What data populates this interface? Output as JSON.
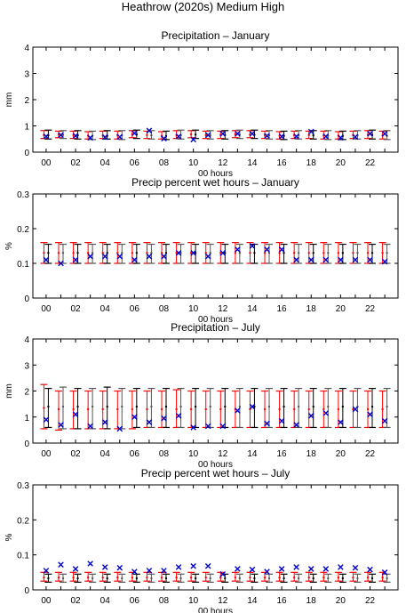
{
  "figure": {
    "title": "Heathrow (2020s) Medium High",
    "colors": {
      "red": "#ff0000",
      "black": "#000000",
      "gray": "#555555",
      "blue": "#0000cc"
    }
  },
  "chart_data": [
    {
      "type": "errorbar",
      "title": "Precipitation – January",
      "xlabel": "00 hours",
      "ylabel": "mm",
      "ylim": [
        0,
        4
      ],
      "yticks": [
        "0",
        "1",
        "2",
        "3",
        "4"
      ],
      "xlim": [
        -0.9,
        23.9
      ],
      "xticks": [
        "00",
        "02",
        "04",
        "06",
        "08",
        "10",
        "12",
        "14",
        "16",
        "18",
        "20",
        "22"
      ],
      "hours": [
        0,
        1,
        2,
        3,
        4,
        5,
        6,
        7,
        8,
        9,
        10,
        11,
        12,
        13,
        14,
        15,
        16,
        17,
        18,
        19,
        20,
        21,
        22,
        23
      ],
      "red_range": {
        "low": [
          0.52,
          0.55,
          0.52,
          0.5,
          0.52,
          0.5,
          0.55,
          0.52,
          0.5,
          0.52,
          0.55,
          0.52,
          0.52,
          0.55,
          0.55,
          0.52,
          0.5,
          0.52,
          0.52,
          0.5,
          0.5,
          0.52,
          0.52,
          0.5
        ],
        "mid": [
          0.65,
          0.67,
          0.65,
          0.63,
          0.63,
          0.65,
          0.68,
          0.65,
          0.62,
          0.65,
          0.68,
          0.65,
          0.66,
          0.68,
          0.67,
          0.65,
          0.63,
          0.65,
          0.65,
          0.63,
          0.63,
          0.65,
          0.66,
          0.63
        ],
        "high": [
          0.82,
          0.8,
          0.8,
          0.78,
          0.8,
          0.8,
          0.82,
          0.8,
          0.78,
          0.82,
          0.82,
          0.8,
          0.8,
          0.82,
          0.82,
          0.8,
          0.78,
          0.8,
          0.8,
          0.8,
          0.78,
          0.8,
          0.82,
          0.8
        ]
      },
      "black_range": {
        "low": [
          0.5,
          0.52,
          0.5,
          0.48,
          0.5,
          0.48,
          0.52,
          0.5,
          0.48,
          0.5,
          0.52,
          0.5,
          0.5,
          0.52,
          0.52,
          0.5,
          0.48,
          0.5,
          0.5,
          0.48,
          0.48,
          0.5,
          0.5,
          0.48
        ],
        "mid": [
          0.64,
          0.66,
          0.64,
          0.62,
          0.62,
          0.64,
          0.67,
          0.64,
          0.61,
          0.64,
          0.67,
          0.64,
          0.65,
          0.67,
          0.66,
          0.64,
          0.62,
          0.64,
          0.64,
          0.62,
          0.62,
          0.64,
          0.65,
          0.62
        ],
        "high": [
          0.84,
          0.82,
          0.82,
          0.8,
          0.82,
          0.82,
          0.84,
          0.82,
          0.8,
          0.84,
          0.84,
          0.82,
          0.82,
          0.84,
          0.84,
          0.82,
          0.8,
          0.82,
          0.82,
          0.82,
          0.8,
          0.82,
          0.84,
          0.82
        ]
      },
      "observed": [
        0.6,
        0.65,
        0.62,
        0.55,
        0.57,
        0.58,
        0.72,
        0.82,
        0.52,
        0.6,
        0.48,
        0.65,
        0.7,
        0.7,
        0.7,
        0.62,
        0.6,
        0.6,
        0.78,
        0.6,
        0.55,
        0.58,
        0.7,
        0.7
      ]
    },
    {
      "type": "errorbar",
      "title": "Precip percent wet hours – January",
      "xlabel": "00 hours",
      "ylabel": "%",
      "ylim": [
        0,
        0.3
      ],
      "yticks": [
        "0",
        "0.1",
        "0.2",
        "0.3"
      ],
      "xlim": [
        -0.9,
        23.9
      ],
      "xticks": [
        "00",
        "02",
        "04",
        "06",
        "08",
        "10",
        "12",
        "14",
        "16",
        "18",
        "20",
        "22"
      ],
      "hours": [
        0,
        1,
        2,
        3,
        4,
        5,
        6,
        7,
        8,
        9,
        10,
        11,
        12,
        13,
        14,
        15,
        16,
        17,
        18,
        19,
        20,
        21,
        22,
        23
      ],
      "red_range": {
        "low": [
          0.1,
          0.1,
          0.1,
          0.1,
          0.1,
          0.1,
          0.1,
          0.1,
          0.1,
          0.1,
          0.1,
          0.1,
          0.1,
          0.1,
          0.1,
          0.1,
          0.1,
          0.1,
          0.1,
          0.1,
          0.1,
          0.1,
          0.1,
          0.1
        ],
        "mid": [
          0.13,
          0.13,
          0.13,
          0.13,
          0.13,
          0.13,
          0.13,
          0.13,
          0.13,
          0.13,
          0.13,
          0.13,
          0.13,
          0.13,
          0.13,
          0.13,
          0.13,
          0.13,
          0.13,
          0.13,
          0.13,
          0.13,
          0.13,
          0.13
        ],
        "high": [
          0.16,
          0.16,
          0.16,
          0.16,
          0.16,
          0.16,
          0.16,
          0.16,
          0.16,
          0.16,
          0.16,
          0.16,
          0.16,
          0.16,
          0.16,
          0.16,
          0.16,
          0.16,
          0.16,
          0.16,
          0.16,
          0.16,
          0.16,
          0.16
        ]
      },
      "black_range": {
        "low": [
          0.1,
          0.1,
          0.1,
          0.1,
          0.1,
          0.1,
          0.1,
          0.1,
          0.1,
          0.1,
          0.1,
          0.1,
          0.1,
          0.1,
          0.1,
          0.1,
          0.1,
          0.1,
          0.1,
          0.1,
          0.1,
          0.1,
          0.1,
          0.1
        ],
        "mid": [
          0.13,
          0.13,
          0.13,
          0.13,
          0.13,
          0.13,
          0.13,
          0.13,
          0.13,
          0.13,
          0.13,
          0.13,
          0.13,
          0.13,
          0.13,
          0.13,
          0.13,
          0.13,
          0.13,
          0.13,
          0.13,
          0.13,
          0.13,
          0.13
        ],
        "high": [
          0.155,
          0.155,
          0.155,
          0.155,
          0.155,
          0.155,
          0.155,
          0.155,
          0.155,
          0.155,
          0.155,
          0.155,
          0.155,
          0.155,
          0.155,
          0.155,
          0.155,
          0.155,
          0.155,
          0.155,
          0.155,
          0.155,
          0.155,
          0.155
        ]
      },
      "observed": [
        0.11,
        0.1,
        0.11,
        0.12,
        0.12,
        0.12,
        0.11,
        0.12,
        0.12,
        0.13,
        0.13,
        0.12,
        0.13,
        0.14,
        0.15,
        0.14,
        0.14,
        0.11,
        0.11,
        0.11,
        0.11,
        0.11,
        0.11,
        0.105
      ]
    },
    {
      "type": "errorbar",
      "title": "Precipitation – July",
      "xlabel": "00 hours",
      "ylabel": "mm",
      "ylim": [
        0,
        4
      ],
      "yticks": [
        "0",
        "1",
        "2",
        "3",
        "4"
      ],
      "xlim": [
        -0.9,
        23.9
      ],
      "xticks": [
        "00",
        "02",
        "04",
        "06",
        "08",
        "10",
        "12",
        "14",
        "16",
        "18",
        "20",
        "22"
      ],
      "hours": [
        0,
        1,
        2,
        3,
        4,
        5,
        6,
        7,
        8,
        9,
        10,
        11,
        12,
        13,
        14,
        15,
        16,
        17,
        18,
        19,
        20,
        21,
        22,
        23
      ],
      "red_range": {
        "low": [
          0.55,
          0.5,
          0.55,
          0.55,
          0.55,
          0.55,
          0.55,
          0.6,
          0.6,
          0.6,
          0.6,
          0.6,
          0.6,
          0.6,
          0.6,
          0.6,
          0.6,
          0.6,
          0.6,
          0.6,
          0.6,
          0.6,
          0.6,
          0.6
        ],
        "mid": [
          1.35,
          1.3,
          1.3,
          1.3,
          1.3,
          1.3,
          1.3,
          1.3,
          1.3,
          1.3,
          1.3,
          1.3,
          1.3,
          1.3,
          1.3,
          1.3,
          1.3,
          1.3,
          1.3,
          1.3,
          1.3,
          1.3,
          1.3,
          1.3
        ],
        "high": [
          2.25,
          2.0,
          2.0,
          2.0,
          2.0,
          2.0,
          2.0,
          2.0,
          2.0,
          2.05,
          2.0,
          2.0,
          2.0,
          2.0,
          2.0,
          2.0,
          2.0,
          2.0,
          2.0,
          2.0,
          2.0,
          2.0,
          2.0,
          2.0
        ]
      },
      "black_range": {
        "low": [
          0.6,
          0.55,
          0.55,
          0.55,
          0.55,
          0.55,
          0.6,
          0.6,
          0.6,
          0.6,
          0.6,
          0.6,
          0.6,
          0.6,
          0.6,
          0.6,
          0.6,
          0.6,
          0.6,
          0.6,
          0.6,
          0.6,
          0.6,
          0.6
        ],
        "mid": [
          1.4,
          1.4,
          1.4,
          1.4,
          1.4,
          1.4,
          1.4,
          1.4,
          1.4,
          1.4,
          1.4,
          1.4,
          1.4,
          1.4,
          1.4,
          1.4,
          1.4,
          1.4,
          1.4,
          1.4,
          1.4,
          1.4,
          1.4,
          1.4
        ],
        "high": [
          2.1,
          2.15,
          2.1,
          2.1,
          2.15,
          2.1,
          2.1,
          2.1,
          2.1,
          2.1,
          2.1,
          2.1,
          2.1,
          2.1,
          2.1,
          2.1,
          2.1,
          2.1,
          2.1,
          2.1,
          2.1,
          2.1,
          2.1,
          2.1
        ]
      },
      "observed": [
        0.9,
        0.7,
        1.1,
        0.65,
        0.8,
        0.55,
        1.0,
        0.8,
        0.95,
        1.05,
        0.6,
        0.65,
        0.65,
        1.25,
        1.4,
        0.75,
        0.85,
        0.7,
        1.05,
        1.15,
        0.8,
        1.3,
        1.1,
        0.85
      ]
    },
    {
      "type": "errorbar",
      "title": "Precip percent wet hours – July",
      "xlabel": "00 hours",
      "ylabel": "%",
      "ylim": [
        0,
        0.3
      ],
      "yticks": [
        "0",
        "0.1",
        "0.2",
        "0.3"
      ],
      "xlim": [
        -0.9,
        23.9
      ],
      "xticks": [
        "00",
        "02",
        "04",
        "06",
        "08",
        "10",
        "12",
        "14",
        "16",
        "18",
        "20",
        "22"
      ],
      "hours": [
        0,
        1,
        2,
        3,
        4,
        5,
        6,
        7,
        8,
        9,
        10,
        11,
        12,
        13,
        14,
        15,
        16,
        17,
        18,
        19,
        20,
        21,
        22,
        23
      ],
      "red_range": {
        "low": [
          0.025,
          0.025,
          0.025,
          0.025,
          0.025,
          0.025,
          0.025,
          0.025,
          0.025,
          0.025,
          0.025,
          0.025,
          0.025,
          0.025,
          0.025,
          0.025,
          0.025,
          0.025,
          0.025,
          0.025,
          0.025,
          0.025,
          0.025,
          0.025
        ],
        "mid": [
          0.035,
          0.035,
          0.035,
          0.035,
          0.035,
          0.035,
          0.035,
          0.035,
          0.035,
          0.035,
          0.035,
          0.035,
          0.035,
          0.035,
          0.035,
          0.035,
          0.035,
          0.035,
          0.035,
          0.035,
          0.035,
          0.035,
          0.035,
          0.035
        ],
        "high": [
          0.05,
          0.05,
          0.05,
          0.05,
          0.05,
          0.05,
          0.05,
          0.05,
          0.05,
          0.05,
          0.05,
          0.05,
          0.05,
          0.05,
          0.05,
          0.05,
          0.05,
          0.05,
          0.05,
          0.05,
          0.05,
          0.05,
          0.05,
          0.05
        ]
      },
      "black_range": {
        "low": [
          0.022,
          0.022,
          0.022,
          0.022,
          0.022,
          0.022,
          0.022,
          0.022,
          0.022,
          0.022,
          0.022,
          0.022,
          0.022,
          0.022,
          0.022,
          0.022,
          0.022,
          0.022,
          0.022,
          0.022,
          0.022,
          0.022,
          0.022,
          0.022
        ],
        "mid": [
          0.033,
          0.033,
          0.033,
          0.033,
          0.033,
          0.033,
          0.033,
          0.033,
          0.033,
          0.033,
          0.033,
          0.033,
          0.033,
          0.033,
          0.033,
          0.033,
          0.033,
          0.033,
          0.033,
          0.033,
          0.033,
          0.033,
          0.033,
          0.033
        ],
        "high": [
          0.045,
          0.045,
          0.045,
          0.045,
          0.045,
          0.045,
          0.045,
          0.045,
          0.045,
          0.045,
          0.045,
          0.045,
          0.045,
          0.045,
          0.045,
          0.045,
          0.045,
          0.045,
          0.045,
          0.045,
          0.045,
          0.045,
          0.045,
          0.045
        ]
      },
      "observed": [
        0.055,
        0.072,
        0.06,
        0.075,
        0.065,
        0.063,
        0.052,
        0.055,
        0.055,
        0.065,
        0.068,
        0.068,
        0.045,
        0.06,
        0.058,
        0.052,
        0.06,
        0.065,
        0.06,
        0.06,
        0.065,
        0.063,
        0.058,
        0.05
      ]
    }
  ]
}
